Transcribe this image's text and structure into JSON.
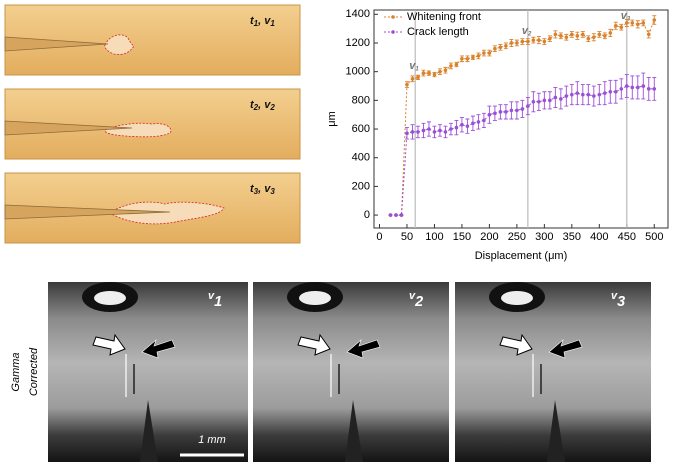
{
  "specimens": [
    {
      "t": "t",
      "v": "v",
      "index": "1"
    },
    {
      "t": "t",
      "v": "v",
      "index": "2"
    },
    {
      "t": "t",
      "v": "v",
      "index": "3"
    }
  ],
  "chart_data": {
    "type": "line",
    "xlabel": "Displacement (μm)",
    "ylabel": "μm",
    "xlim": [
      -10,
      525
    ],
    "ylim": [
      -90,
      1430
    ],
    "xticks": [
      0,
      50,
      100,
      150,
      200,
      250,
      300,
      350,
      400,
      450,
      500
    ],
    "yticks": [
      0,
      200,
      400,
      600,
      800,
      1000,
      1200,
      1400
    ],
    "legend": "upper left",
    "markers": [
      {
        "x": 65,
        "label": "v",
        "index": "1"
      },
      {
        "x": 270,
        "label": "v",
        "index": "2"
      },
      {
        "x": 450,
        "label": "v",
        "index": "3"
      }
    ],
    "x": [
      20,
      30,
      40,
      50,
      60,
      70,
      80,
      90,
      100,
      110,
      120,
      130,
      140,
      150,
      160,
      170,
      180,
      190,
      200,
      210,
      220,
      230,
      240,
      250,
      260,
      270,
      280,
      290,
      300,
      310,
      320,
      330,
      340,
      350,
      360,
      370,
      380,
      390,
      400,
      410,
      420,
      430,
      440,
      450,
      460,
      470,
      480,
      490,
      500
    ],
    "series": [
      {
        "name": "Whitening front",
        "color": "#d9822b",
        "values": [
          0,
          0,
          0,
          910,
          950,
          960,
          990,
          990,
          980,
          1000,
          1010,
          1040,
          1050,
          1090,
          1090,
          1100,
          1110,
          1130,
          1130,
          1160,
          1170,
          1180,
          1200,
          1200,
          1210,
          1210,
          1220,
          1220,
          1210,
          1230,
          1260,
          1250,
          1240,
          1260,
          1250,
          1260,
          1230,
          1240,
          1260,
          1250,
          1270,
          1320,
          1310,
          1340,
          1340,
          1330,
          1340,
          1260,
          1360
        ],
        "errors": [
          0,
          0,
          0,
          20,
          20,
          15,
          20,
          15,
          15,
          20,
          20,
          20,
          15,
          20,
          20,
          15,
          20,
          20,
          20,
          20,
          20,
          20,
          25,
          20,
          20,
          20,
          20,
          25,
          20,
          20,
          25,
          20,
          20,
          20,
          25,
          20,
          20,
          25,
          20,
          20,
          25,
          25,
          20,
          25,
          20,
          25,
          20,
          25,
          30
        ]
      },
      {
        "name": "Crack length",
        "color": "#9b4fd6",
        "values": [
          0,
          0,
          0,
          570,
          580,
          580,
          590,
          600,
          580,
          590,
          580,
          600,
          610,
          630,
          620,
          640,
          650,
          660,
          700,
          710,
          720,
          720,
          730,
          730,
          740,
          760,
          790,
          790,
          800,
          800,
          820,
          810,
          830,
          840,
          850,
          840,
          840,
          830,
          840,
          850,
          860,
          860,
          880,
          900,
          890,
          890,
          900,
          880,
          880
        ],
        "errors": [
          0,
          0,
          0,
          40,
          50,
          40,
          50,
          50,
          40,
          40,
          40,
          40,
          50,
          50,
          50,
          50,
          50,
          50,
          60,
          50,
          50,
          50,
          60,
          60,
          60,
          60,
          70,
          60,
          60,
          60,
          70,
          70,
          70,
          70,
          80,
          70,
          70,
          70,
          70,
          80,
          80,
          80,
          70,
          80,
          80,
          80,
          90,
          80,
          80
        ]
      }
    ]
  },
  "photos": [
    {
      "label": "v",
      "index": "1"
    },
    {
      "label": "v",
      "index": "2"
    },
    {
      "label": "v",
      "index": "3"
    }
  ],
  "side_label": [
    "Gamma",
    "Corrected"
  ],
  "scale_bar": "1 mm"
}
